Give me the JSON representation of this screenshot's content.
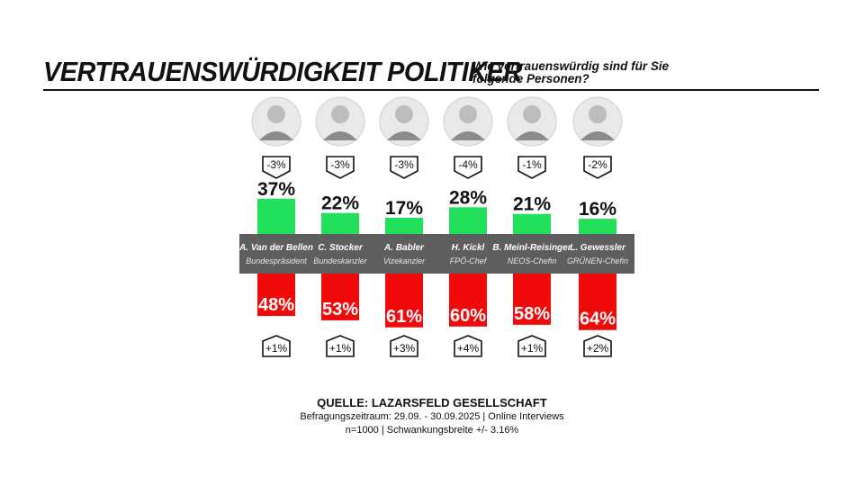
{
  "header": {
    "title": "VERTRAUENSWÜRDIGKEIT POLITIKER",
    "subtitle": "Wie vertrauenswürdig sind für Sie folgende Personen?"
  },
  "colors": {
    "trust": "#22e05a",
    "distrust": "#f00a0a",
    "band": "#5e5e5e"
  },
  "chart_data": {
    "type": "bar",
    "categories": [
      "A. Van der Bellen",
      "C. Stocker",
      "A. Babler",
      "H. Kickl",
      "B. Meinl-Reisinger",
      "L. Gewessler"
    ],
    "roles": [
      "Bundespräsident",
      "Bundeskanzler",
      "Vizekanzler",
      "FPÖ-Chef",
      "NEOS-Chefin",
      "GRÜNEN-Chefin"
    ],
    "series": [
      {
        "values": [
          37,
          22,
          17,
          28,
          21,
          16
        ],
        "labels": [
          "37%",
          "22%",
          "17%",
          "28%",
          "21%",
          "16%"
        ],
        "color": "#22e05a"
      },
      {
        "values": [
          48,
          53,
          61,
          60,
          58,
          64
        ],
        "labels": [
          "48%",
          "53%",
          "61%",
          "60%",
          "58%",
          "64%"
        ],
        "color": "#f00a0a"
      }
    ],
    "change_top": [
      "-3%",
      "-3%",
      "-3%",
      "-4%",
      "-1%",
      "-2%"
    ],
    "change_bottom": [
      "+1%",
      "+1%",
      "+3%",
      "+4%",
      "+1%",
      "+2%"
    ]
  },
  "source": {
    "title": "QUELLE: LAZARSFELD GESELLSCHAFT",
    "line1": "Befragungszeitraum: 29.09. - 30.09.2025 | Online Interviews",
    "line2": "n=1000  |  Schwankungsbreite +/- 3.16%"
  }
}
